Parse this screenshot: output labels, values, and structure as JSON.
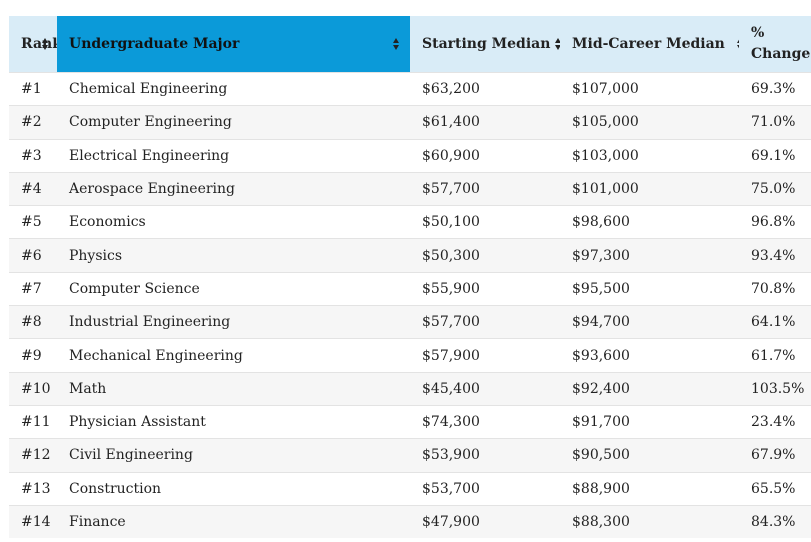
{
  "colors": {
    "header_bg": "#d9ecf7",
    "active_header_bg": "#0b9ad9",
    "row_alt_bg": "#f6f6f6"
  },
  "table": {
    "headers": {
      "rank": "Rank",
      "major": "Undergraduate Major",
      "starting": "Starting Median",
      "mid_career": "Mid-Career Median",
      "change": "% Change"
    },
    "sort_icon": "sort-updown-icon",
    "rows": [
      {
        "rank": "#1",
        "major": "Chemical Engineering",
        "starting": "$63,200",
        "mid": "$107,000",
        "change": "69.3%"
      },
      {
        "rank": "#2",
        "major": "Computer Engineering",
        "starting": "$61,400",
        "mid": "$105,000",
        "change": "71.0%"
      },
      {
        "rank": "#3",
        "major": "Electrical Engineering",
        "starting": "$60,900",
        "mid": "$103,000",
        "change": "69.1%"
      },
      {
        "rank": "#4",
        "major": "Aerospace Engineering",
        "starting": "$57,700",
        "mid": "$101,000",
        "change": "75.0%"
      },
      {
        "rank": "#5",
        "major": "Economics",
        "starting": "$50,100",
        "mid": "$98,600",
        "change": "96.8%"
      },
      {
        "rank": "#6",
        "major": "Physics",
        "starting": "$50,300",
        "mid": "$97,300",
        "change": "93.4%"
      },
      {
        "rank": "#7",
        "major": "Computer Science",
        "starting": "$55,900",
        "mid": "$95,500",
        "change": "70.8%"
      },
      {
        "rank": "#8",
        "major": "Industrial Engineering",
        "starting": "$57,700",
        "mid": "$94,700",
        "change": "64.1%"
      },
      {
        "rank": "#9",
        "major": "Mechanical Engineering",
        "starting": "$57,900",
        "mid": "$93,600",
        "change": "61.7%"
      },
      {
        "rank": "#10",
        "major": "Math",
        "starting": "$45,400",
        "mid": "$92,400",
        "change": "103.5%"
      },
      {
        "rank": "#11",
        "major": "Physician Assistant",
        "starting": "$74,300",
        "mid": "$91,700",
        "change": "23.4%"
      },
      {
        "rank": "#12",
        "major": "Civil Engineering",
        "starting": "$53,900",
        "mid": "$90,500",
        "change": "67.9%"
      },
      {
        "rank": "#13",
        "major": "Construction",
        "starting": "$53,700",
        "mid": "$88,900",
        "change": "65.5%"
      },
      {
        "rank": "#14",
        "major": "Finance",
        "starting": "$47,900",
        "mid": "$88,300",
        "change": "84.3%"
      }
    ]
  }
}
